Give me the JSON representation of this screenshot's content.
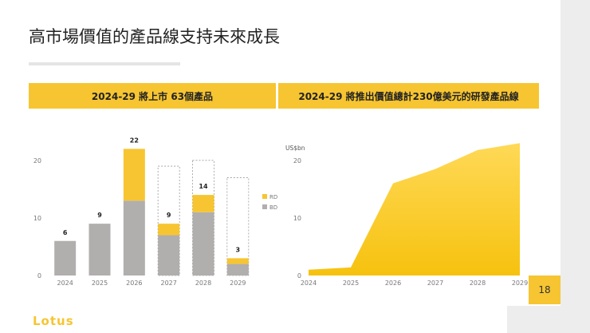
{
  "title": "高市場價值的產品線支持未來成長",
  "banners": {
    "left": "2024-29 將上市 63個產品",
    "right": "2024-29 將推出價值總計230億美元的研發產品線"
  },
  "page_number": "18",
  "logo": "Lotus",
  "colors": {
    "accent": "#f6c531",
    "gray": "#b1aeae",
    "rd": "#f6c531",
    "bd": "#b1aeae"
  },
  "chart_data": [
    {
      "type": "bar",
      "stacked": true,
      "categories": [
        "2024",
        "2025",
        "2026",
        "2027",
        "2028",
        "2029"
      ],
      "series": [
        {
          "name": "BD",
          "values": [
            6,
            9,
            13,
            7,
            11,
            2
          ]
        },
        {
          "name": "RD",
          "values": [
            0,
            0,
            9,
            2,
            3,
            1
          ]
        }
      ],
      "totals": [
        6,
        9,
        22,
        9,
        14,
        3
      ],
      "dashed_outline_values": [
        null,
        null,
        null,
        19,
        20,
        17
      ],
      "yticks": [
        0,
        10,
        20
      ],
      "ylim": [
        0,
        24
      ],
      "legend": "right"
    },
    {
      "type": "area",
      "x": [
        "2024",
        "2025",
        "2026",
        "2027",
        "2028",
        "2029"
      ],
      "values": [
        1,
        1.4,
        16,
        18.5,
        21.8,
        23
      ],
      "ylabel": "US$bn",
      "yticks": [
        0,
        10,
        20
      ],
      "ylim": [
        0,
        24
      ]
    }
  ]
}
